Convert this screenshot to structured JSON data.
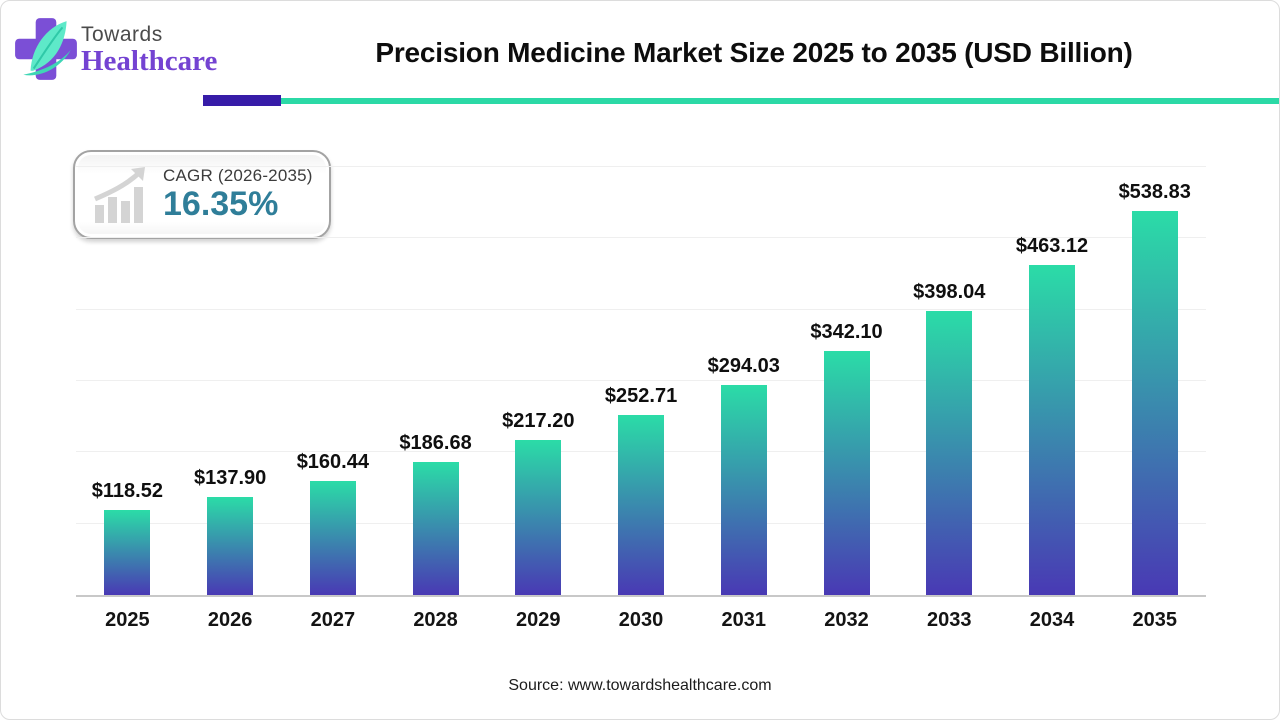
{
  "header": {
    "logo": {
      "line1": "Towards",
      "line2": "Healthcare"
    },
    "title": "Precision Medicine Market Size 2025 to 2035 (USD Billion)"
  },
  "cagr": {
    "label": "CAGR (2026-2035)",
    "value": "16.35%"
  },
  "chart_data": {
    "type": "bar",
    "title": "Precision Medicine Market Size 2025 to 2035 (USD Billion)",
    "categories": [
      "2025",
      "2026",
      "2027",
      "2028",
      "2029",
      "2030",
      "2031",
      "2032",
      "2033",
      "2034",
      "2035"
    ],
    "values": [
      118.52,
      137.9,
      160.44,
      186.68,
      217.2,
      252.71,
      294.03,
      342.1,
      398.04,
      463.12,
      538.83
    ],
    "value_prefix": "$",
    "unit": "USD Billion",
    "xlabel": "",
    "ylabel": "",
    "ylim": [
      0,
      600
    ],
    "grid_step": 100,
    "grid": true,
    "legend": false,
    "bar_gradient_top": "#2bdca7",
    "bar_gradient_bottom": "#4939b4"
  },
  "footer": {
    "source": "Source: www.towardshealthcare.com"
  },
  "colors": {
    "divider_purple": "#371ca8",
    "divider_teal": "#2bd9a6",
    "cagr_value_color": "#2f7e99",
    "logo_cross_purple": "#7b4fd6",
    "logo_leaf_mint": "#5ee9c9",
    "logo_leaf_swoosh": "#3ed6b5"
  }
}
